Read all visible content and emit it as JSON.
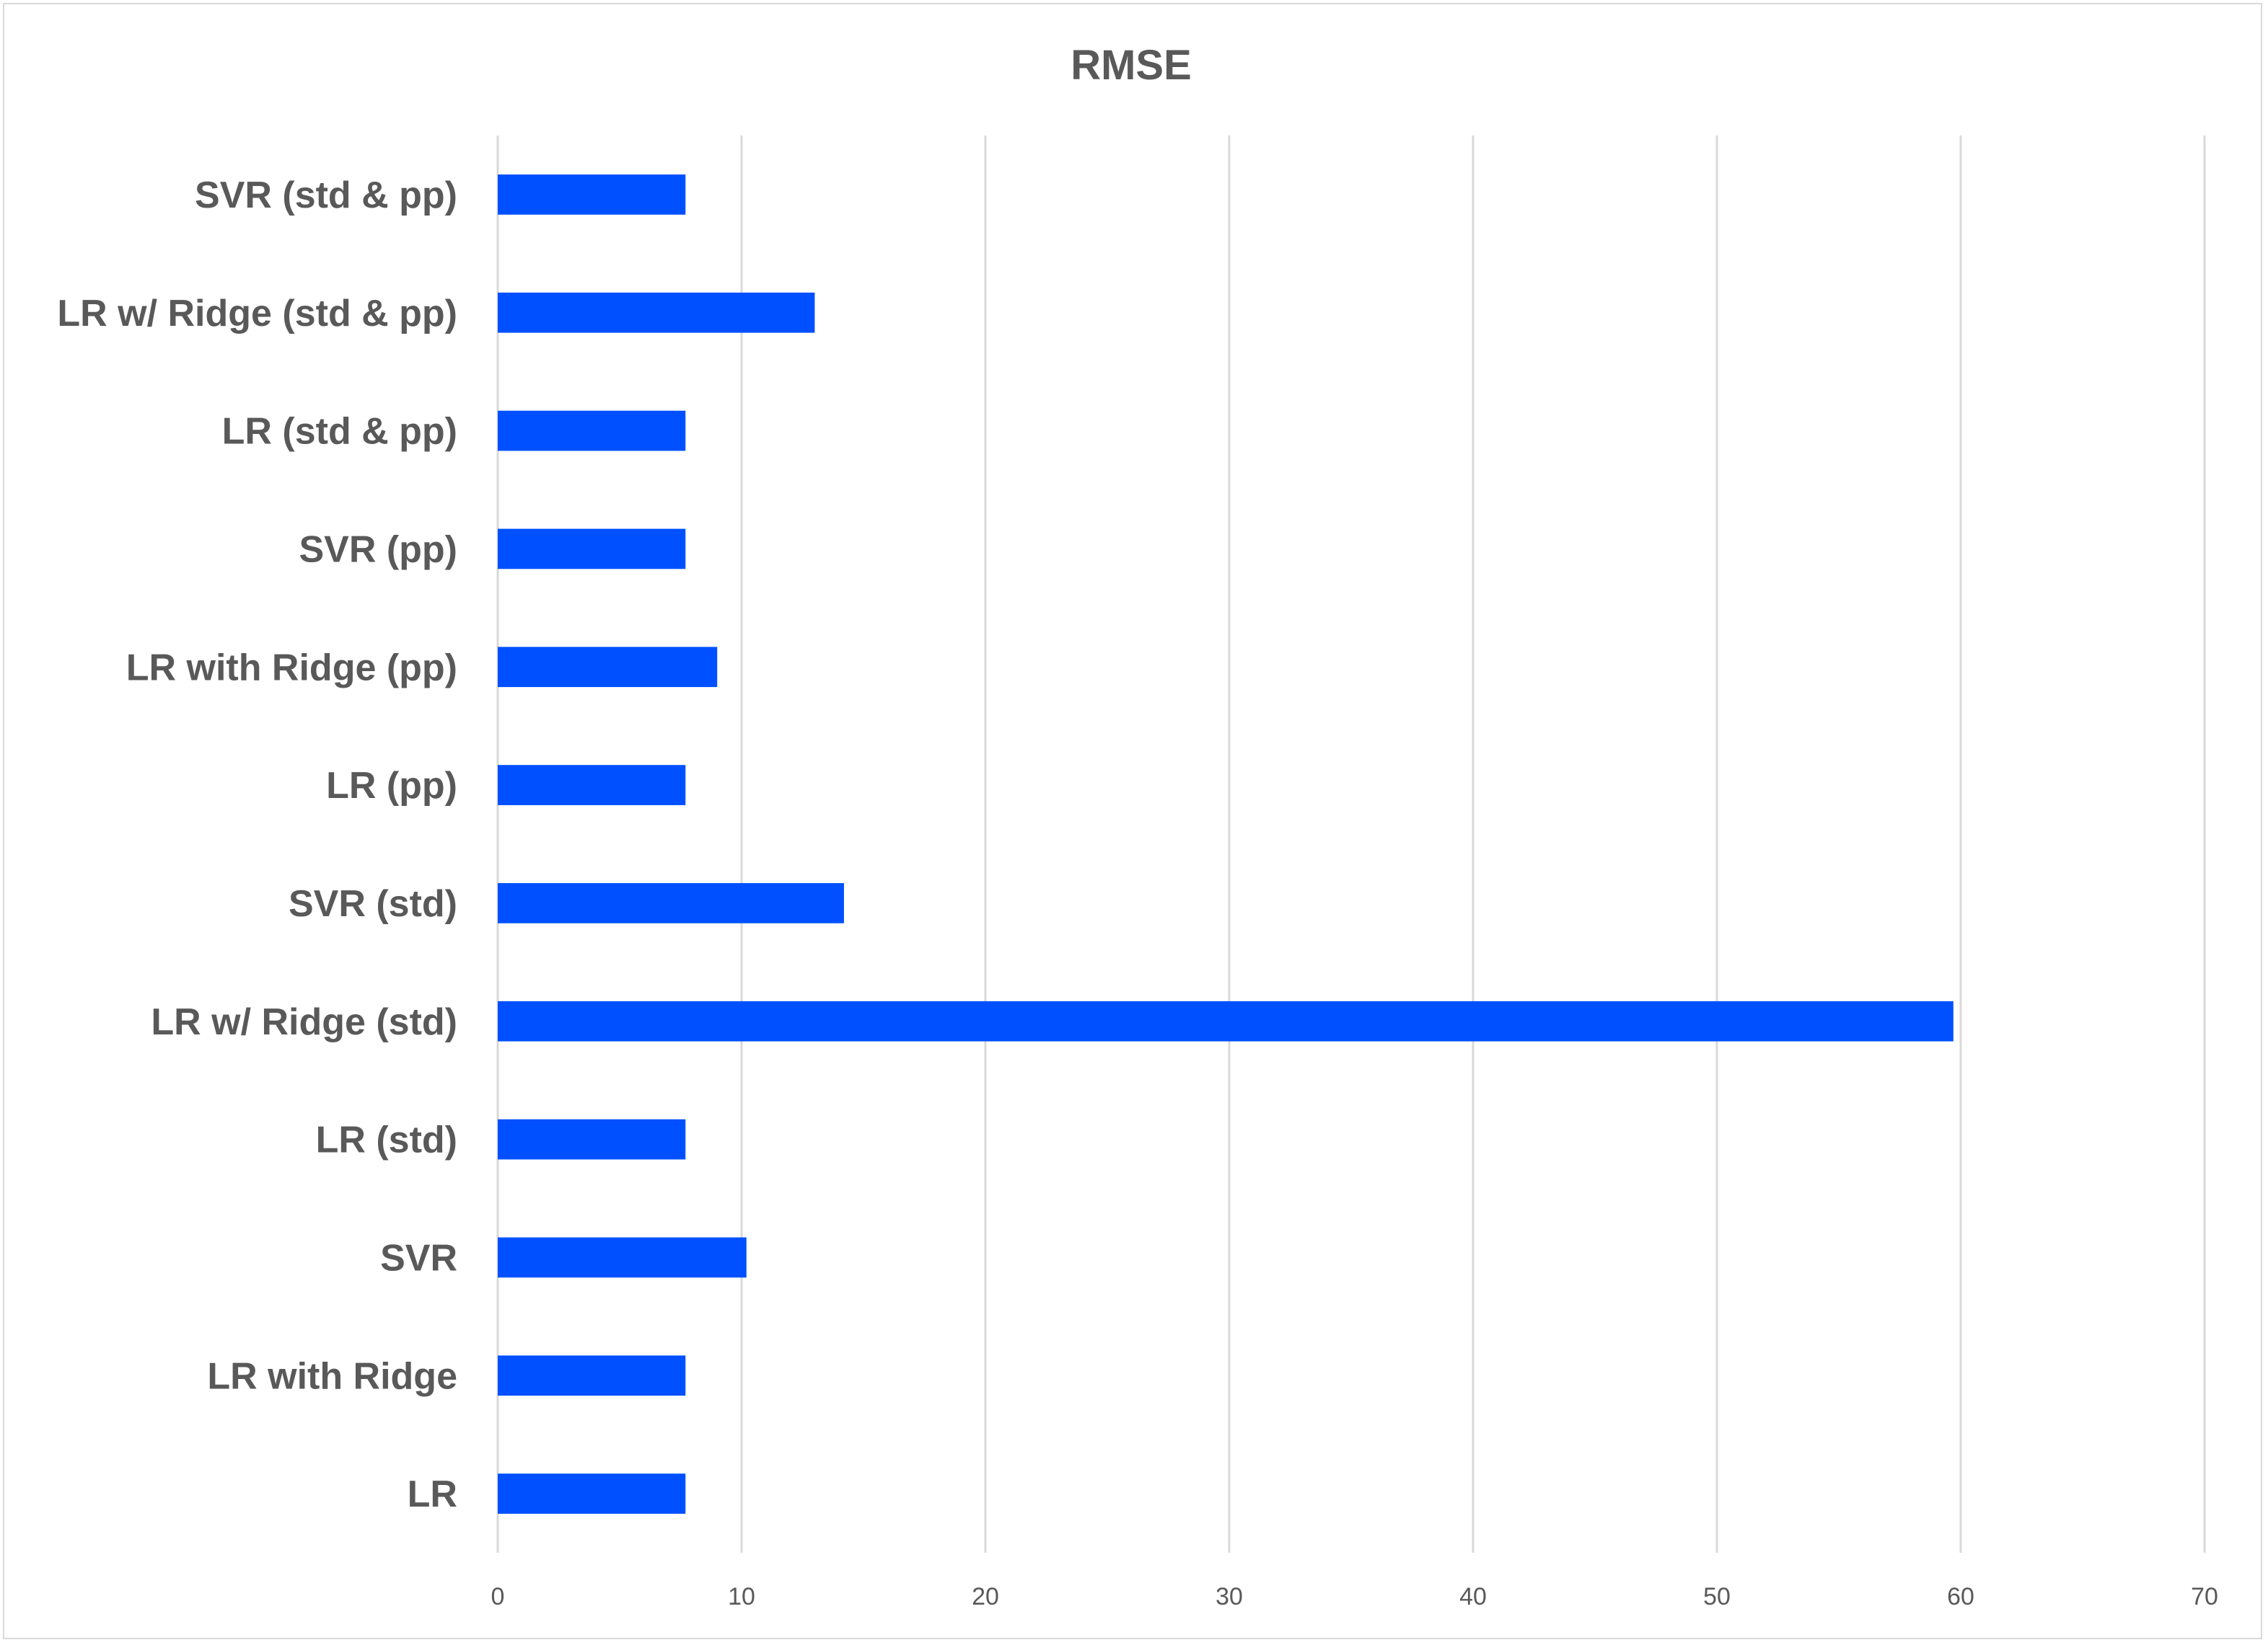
{
  "chart_data": {
    "type": "bar",
    "orientation": "horizontal",
    "title": "RMSE",
    "categories": [
      "SVR (std & pp)",
      "LR w/ Ridge (std & pp)",
      "LR (std & pp)",
      "SVR (pp)",
      "LR with Ridge  (pp)",
      "LR (pp)",
      "SVR (std)",
      "LR w/ Ridge (std)",
      "LR (std)",
      "SVR",
      "LR with Ridge",
      "LR"
    ],
    "values": [
      7.7,
      13.0,
      7.7,
      7.7,
      9.0,
      7.7,
      14.2,
      59.7,
      7.7,
      10.2,
      7.7,
      7.7
    ],
    "xlim": [
      0,
      70
    ],
    "xticks": [
      "0",
      "10",
      "20",
      "30",
      "40",
      "50",
      "60",
      "70"
    ],
    "grid": "vertical",
    "legend": "none",
    "bar_color": "#0050ff"
  }
}
